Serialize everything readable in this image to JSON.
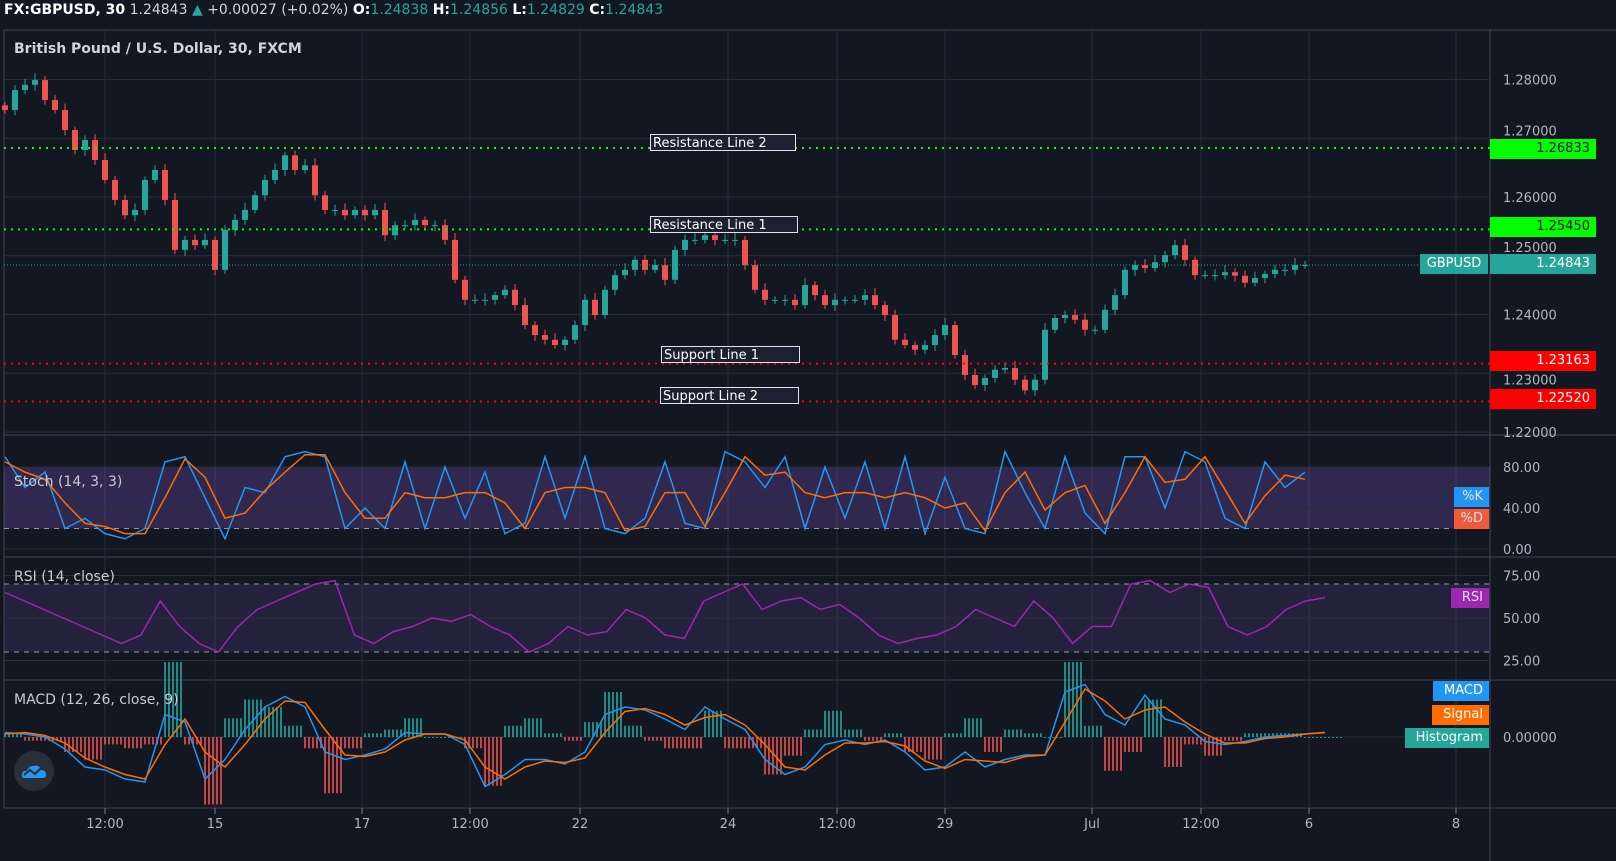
{
  "header": {
    "symbol": "FX:GBPUSD, 30",
    "last": "1.24843",
    "change": "+0.00027 (+0.02%)",
    "open_label": "O:",
    "open": "1.24838",
    "high_label": "H:",
    "high": "1.24856",
    "low_label": "L:",
    "low": "1.24829",
    "close_label": "C:",
    "close": "1.24843"
  },
  "title": "British Pound / U.S. Dollar, 30, FXCM",
  "colors": {
    "background": "#131722",
    "grid": "#2a2e39",
    "up": "#26a69a",
    "down": "#ef5350",
    "resistance": "#00ff00",
    "support": "#ff0000",
    "k": "#2196f3",
    "d": "#ff6d00",
    "rsi": "#9c27b0",
    "macd": "#2196f3",
    "signal": "#ff6d00"
  },
  "price_axis": {
    "ticks": [
      "1.28000",
      "1.27000",
      "1.26000",
      "1.25000",
      "1.24000",
      "1.23000",
      "1.22000"
    ],
    "current_symbol": "GBPUSD",
    "current": "1.24843"
  },
  "lines": [
    {
      "label": "Resistance Line 2",
      "value": "1.26833",
      "kind": "resistance"
    },
    {
      "label": "Resistance Line 1",
      "value": "1.25450",
      "kind": "resistance"
    },
    {
      "label": "Support Line 1",
      "value": "1.23163",
      "kind": "support"
    },
    {
      "label": "Support Line 2",
      "value": "1.22520",
      "kind": "support"
    }
  ],
  "time_axis": [
    "12:00",
    "15",
    "17",
    "12:00",
    "22",
    "24",
    "12:00",
    "29",
    "Jul",
    "12:00",
    "6",
    "8"
  ],
  "stoch": {
    "label": "Stoch (14, 3, 3)",
    "ticks": [
      "80.00",
      "40.00",
      "0.00"
    ],
    "k_label": "%K",
    "d_label": "%D",
    "upper": 80,
    "lower": 20
  },
  "rsi": {
    "label": "RSI (14, close)",
    "ticks": [
      "75.00",
      "50.00",
      "25.00"
    ],
    "tag": "RSI",
    "upper": 70,
    "lower": 30
  },
  "macd": {
    "label": "MACD (12, 26, close, 9)",
    "ticks": [
      "0.00000"
    ],
    "macd_label": "MACD",
    "signal_label": "Signal",
    "hist_label": "Histogram"
  },
  "chart_data": {
    "type": "candlestick",
    "symbol": "GBPUSD",
    "interval": "30",
    "ylim": [
      1.22,
      1.285
    ],
    "closes": [
      1.2748,
      1.2782,
      1.2791,
      1.2799,
      1.2765,
      1.2748,
      1.2714,
      1.268,
      1.2697,
      1.2663,
      1.2629,
      1.2595,
      1.2569,
      1.2578,
      1.2629,
      1.2646,
      1.2595,
      1.251,
      1.2527,
      1.2518,
      1.2527,
      1.2476,
      1.2544,
      1.2561,
      1.2578,
      1.2603,
      1.2629,
      1.2646,
      1.2671,
      1.2646,
      1.2654,
      1.2603,
      1.2578,
      1.2578,
      1.2569,
      1.2578,
      1.2569,
      1.2578,
      1.2535,
      1.2552,
      1.2552,
      1.2561,
      1.2552,
      1.2552,
      1.2527,
      1.2459,
      1.2425,
      1.2425,
      1.2425,
      1.2433,
      1.2442,
      1.2416,
      1.2382,
      1.2365,
      1.2357,
      1.2348,
      1.2357,
      1.2382,
      1.2425,
      1.2399,
      1.2442,
      1.2467,
      1.2476,
      1.2493,
      1.2476,
      1.2484,
      1.2459,
      1.251,
      1.2527,
      1.2527,
      1.2535,
      1.2527,
      1.2527,
      1.2527,
      1.2484,
      1.2442,
      1.2425,
      1.2425,
      1.2425,
      1.2416,
      1.245,
      1.2433,
      1.2416,
      1.2425,
      1.2425,
      1.2425,
      1.2433,
      1.2416,
      1.2399,
      1.2357,
      1.2348,
      1.234,
      1.2348,
      1.2365,
      1.2382,
      1.2331,
      1.2297,
      1.228,
      1.2292,
      1.2306,
      1.2309,
      1.2289,
      1.2271,
      1.2289,
      1.2374,
      1.2394,
      1.2399,
      1.2391,
      1.2374,
      1.2374,
      1.2408,
      1.2433,
      1.2476,
      1.2484,
      1.2479,
      1.2489,
      1.2501,
      1.2518,
      1.2493,
      1.2467,
      1.2467,
      1.2467,
      1.2472,
      1.2466,
      1.2454,
      1.2462,
      1.2469,
      1.2476,
      1.2476,
      1.2484,
      1.24843
    ],
    "stoch_k": [
      90,
      60,
      75,
      20,
      30,
      15,
      10,
      20,
      85,
      90,
      50,
      10,
      60,
      55,
      90,
      95,
      90,
      20,
      40,
      20,
      85,
      20,
      80,
      30,
      75,
      15,
      25,
      90,
      30,
      90,
      20,
      15,
      30,
      85,
      25,
      20,
      95,
      85,
      60,
      90,
      20,
      80,
      30,
      85,
      20,
      90,
      15,
      70,
      20,
      15,
      95,
      55,
      20,
      90,
      35,
      15,
      90,
      90,
      40,
      95,
      85,
      30,
      20,
      85,
      60,
      75
    ],
    "stoch_d": [
      85,
      75,
      68,
      45,
      25,
      22,
      15,
      15,
      50,
      88,
      70,
      30,
      35,
      57,
      75,
      92,
      92,
      55,
      30,
      30,
      55,
      50,
      50,
      55,
      55,
      45,
      20,
      55,
      60,
      60,
      55,
      18,
      22,
      55,
      55,
      22,
      55,
      90,
      72,
      75,
      55,
      50,
      55,
      55,
      50,
      55,
      50,
      40,
      45,
      18,
      55,
      75,
      38,
      55,
      62,
      25,
      55,
      90,
      65,
      68,
      90,
      58,
      25,
      52,
      72,
      68
    ],
    "rsi": [
      65,
      60,
      55,
      50,
      45,
      40,
      35,
      40,
      60,
      45,
      35,
      30,
      45,
      55,
      60,
      65,
      70,
      72,
      40,
      35,
      42,
      45,
      50,
      48,
      52,
      45,
      40,
      30,
      35,
      45,
      40,
      42,
      55,
      50,
      40,
      38,
      60,
      65,
      70,
      55,
      60,
      62,
      55,
      58,
      50,
      40,
      35,
      38,
      40,
      45,
      55,
      50,
      45,
      60,
      50,
      35,
      45,
      45,
      70,
      72,
      65,
      70,
      68,
      45,
      40,
      45,
      55,
      60,
      62
    ],
    "macd": [
      0.0003,
      0.0002,
      0.0,
      -0.0008,
      -0.002,
      -0.0022,
      -0.0028,
      -0.003,
      0.0015,
      0.001,
      -0.0028,
      -0.0015,
      0.0005,
      0.002,
      0.0027,
      0.002,
      -0.001,
      -0.0015,
      -0.0012,
      -0.0008,
      0.0003,
      0.0002,
      0.0002,
      -0.0005,
      -0.0033,
      -0.0025,
      -0.0015,
      -0.0015,
      -0.0018,
      -0.001,
      0.0015,
      0.002,
      0.0018,
      0.0012,
      0.0005,
      0.002,
      0.0012,
      0.0005,
      -0.0015,
      -0.0025,
      -0.002,
      -0.0005,
      -0.0002,
      -0.0005,
      -0.0002,
      -0.001,
      -0.0022,
      -0.002,
      -0.001,
      -0.002,
      -0.0015,
      -0.0012,
      -0.0012,
      0.003,
      0.0035,
      0.0015,
      0.0008,
      0.0028,
      0.0012,
      0.0008,
      -0.0003,
      -0.0005,
      -0.0003,
      0.0,
      0.0001,
      0.0002,
      0.0003
    ],
    "signal": [
      0.0002,
      0.0003,
      0.0001,
      -0.0004,
      -0.0014,
      -0.002,
      -0.0025,
      -0.0028,
      -0.0005,
      0.0012,
      -0.001,
      -0.002,
      -0.0005,
      0.0012,
      0.0024,
      0.0023,
      0.0005,
      -0.0012,
      -0.0013,
      -0.001,
      -0.0002,
      0.0002,
      0.0002,
      -0.0002,
      -0.002,
      -0.0028,
      -0.002,
      -0.0016,
      -0.0017,
      -0.0014,
      0.0003,
      0.0017,
      0.0019,
      0.0015,
      0.0008,
      0.0013,
      0.0015,
      0.0008,
      -0.0005,
      -0.002,
      -0.0022,
      -0.0012,
      -0.0004,
      -0.0004,
      -0.0003,
      -0.0006,
      -0.0016,
      -0.0021,
      -0.0015,
      -0.0016,
      -0.0017,
      -0.0013,
      -0.0012,
      0.001,
      0.0032,
      0.0024,
      0.0012,
      0.0018,
      0.002,
      0.001,
      0.0002,
      -0.0004,
      -0.0004,
      -0.0001,
      0.0,
      0.0002,
      0.0003
    ]
  }
}
